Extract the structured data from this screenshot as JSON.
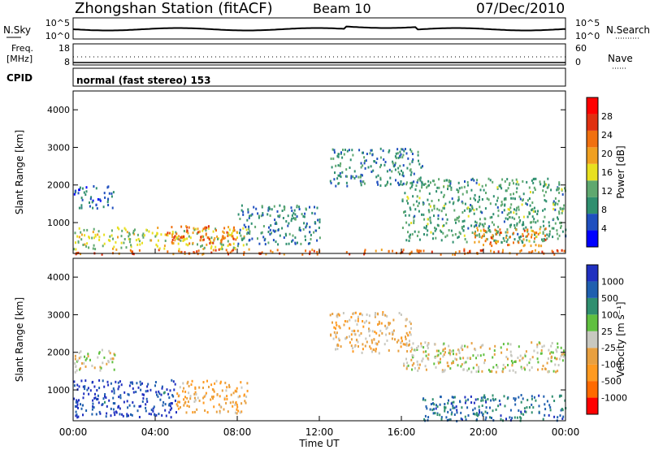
{
  "header": {
    "station": "Zhongshan Station (fitACF)",
    "beam": "Beam 10",
    "date": "07/Dec/2010"
  },
  "aux_panels": {
    "nsky": {
      "left_label": "N.Sky",
      "right_label": "N.Search",
      "left_ticks": [
        "10^5",
        "10^0"
      ],
      "right_ticks": [
        "10^5",
        "10^0"
      ]
    },
    "freq": {
      "left_label_1": "Freq.",
      "left_label_2": "[MHz]",
      "right_label": "Nave",
      "left_ticks": [
        "18",
        "8"
      ],
      "right_ticks": [
        "60",
        "0"
      ]
    },
    "cpid": {
      "label": "CPID",
      "text": "normal (fast stereo) 153"
    }
  },
  "colors": {
    "power_scale": [
      "#0000ff",
      "#1f4fbf",
      "#2f8f6f",
      "#5fa86f",
      "#e8e020",
      "#f0a020",
      "#f07010",
      "#e03010",
      "#ff0000"
    ],
    "velocity_scale": [
      "#ff0000",
      "#ff6a00",
      "#ff9a20",
      "#e8a040",
      "#c8c8c0",
      "#60c040",
      "#2f8f6f",
      "#1f5faf",
      "#2030c0"
    ]
  },
  "chart_data": [
    {
      "type": "heatmap",
      "title": "",
      "xlabel": "",
      "ylabel": "Slant Range [km]",
      "x_ticks": [
        "00:00",
        "04:00",
        "08:00",
        "12:00",
        "16:00",
        "20:00",
        "00:00"
      ],
      "y_ticks": [
        "1000",
        "2000",
        "3000",
        "4000"
      ],
      "ylim": [
        180,
        4500
      ],
      "xlim_hours": [
        0,
        24
      ],
      "colorbar": {
        "label": "Power [dB]",
        "ticks": [
          "4",
          "8",
          "12",
          "16",
          "20",
          "24",
          "28"
        ],
        "range": [
          0,
          30
        ]
      },
      "regions": [
        {
          "t": [
            0,
            24
          ],
          "r": [
            180,
            320
          ],
          "value": 22
        },
        {
          "t": [
            0,
            8.5
          ],
          "r": [
            320,
            900
          ],
          "value": 14
        },
        {
          "t": [
            4.5,
            8
          ],
          "r": [
            450,
            950
          ],
          "value": 22
        },
        {
          "t": [
            0,
            2
          ],
          "r": [
            1400,
            2000
          ],
          "value": 6
        },
        {
          "t": [
            8,
            12
          ],
          "r": [
            450,
            1500
          ],
          "value": 8
        },
        {
          "t": [
            12.5,
            17
          ],
          "r": [
            2000,
            3000
          ],
          "value": 8
        },
        {
          "t": [
            16,
            24
          ],
          "r": [
            500,
            2200
          ],
          "value": 10
        },
        {
          "t": [
            19.5,
            23
          ],
          "r": [
            400,
            900
          ],
          "value": 20
        }
      ]
    },
    {
      "type": "heatmap",
      "title": "",
      "xlabel": "Time UT",
      "ylabel": "Slant Range [km]",
      "x_ticks": [
        "00:00",
        "04:00",
        "08:00",
        "12:00",
        "16:00",
        "20:00",
        "00:00"
      ],
      "y_ticks": [
        "1000",
        "2000",
        "3000",
        "4000"
      ],
      "ylim": [
        180,
        4500
      ],
      "xlim_hours": [
        0,
        24
      ],
      "colorbar": {
        "label": "Velocity [m s⁻¹]",
        "ticks": [
          "1000",
          "500",
          "100",
          "25",
          "-25",
          "-100",
          "-500",
          "-1000"
        ],
        "range": [
          -1000,
          1000
        ]
      },
      "regions": [
        {
          "t": [
            0,
            5
          ],
          "r": [
            300,
            1300
          ],
          "value": 800
        },
        {
          "t": [
            5,
            8.5
          ],
          "r": [
            400,
            1300
          ],
          "value": -300
        },
        {
          "t": [
            0,
            2
          ],
          "r": [
            1500,
            2100
          ],
          "value": 0
        },
        {
          "t": [
            12.5,
            16.5
          ],
          "r": [
            2000,
            3100
          ],
          "value": -200
        },
        {
          "t": [
            16,
            24
          ],
          "r": [
            1500,
            2300
          ],
          "value": 0
        },
        {
          "t": [
            17,
            24
          ],
          "r": [
            200,
            900
          ],
          "value": 600
        }
      ]
    }
  ]
}
